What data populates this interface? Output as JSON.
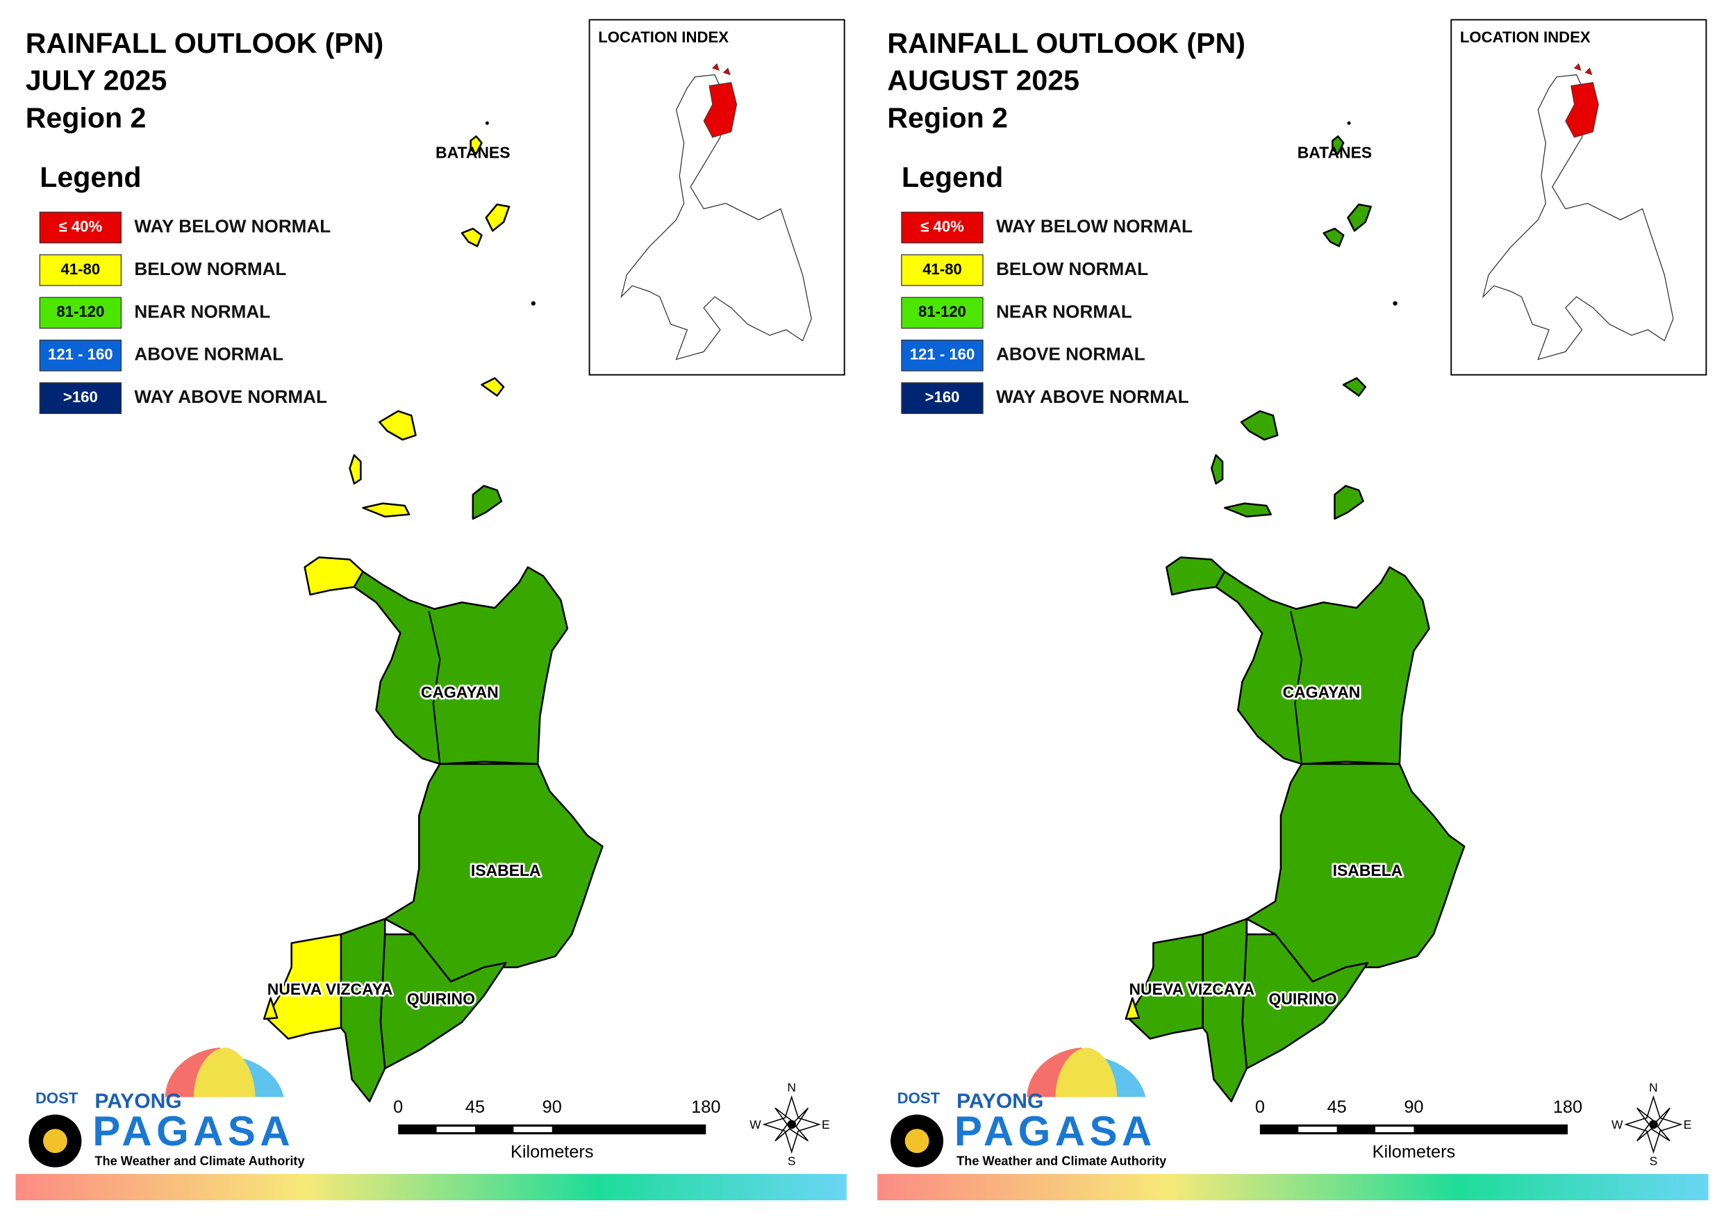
{
  "panels": [
    {
      "title": [
        "RAINFALL OUTLOOK (PN)",
        "JULY 2025",
        "Region 2"
      ],
      "legend": {
        "title": "Legend",
        "items": [
          {
            "code": "≤ 40%",
            "label": "WAY BELOW NORMAL",
            "color": "#e60000"
          },
          {
            "code": "41-80",
            "label": "BELOW NORMAL",
            "color": "#ffff00"
          },
          {
            "code": "81-120",
            "label": "NEAR NORMAL",
            "color": "#4ce600"
          },
          {
            "code": "121 - 160",
            "label": "ABOVE NORMAL",
            "color": "#0a64d8"
          },
          {
            "code": ">160",
            "label": "WAY ABOVE NORMAL",
            "color": "#002673"
          }
        ]
      },
      "location_index": "LOCATION INDEX",
      "labels": [
        "BATANES",
        "CAGAYAN",
        "ISABELA",
        "NUEVA VIZCAYA",
        "QUIRINO"
      ],
      "zones": [
        "#ffff00",
        "#38a800",
        "#38a800",
        "#38a800",
        "#38a800",
        "#ffff00",
        "#ffff00",
        "#ffff00",
        "#ffff00",
        "#ffff00",
        "#ffff00",
        "#ffff00",
        "#ffff00",
        "#ffff00",
        "#38a800"
      ],
      "scale": {
        "ticks": [
          0,
          45,
          90,
          180
        ],
        "unit": "Kilometers"
      },
      "compass": [
        "N",
        "E",
        "S",
        "W"
      ],
      "logo": {
        "dost": "DOST",
        "payong": "PAYONG",
        "pagasa": "PAGASA",
        "tagline": "The Weather and Climate Authority"
      }
    },
    {
      "title": [
        "RAINFALL OUTLOOK (PN)",
        "AUGUST 2025",
        "Region 2"
      ],
      "legend": {
        "title": "Legend",
        "items": [
          {
            "code": "≤ 40%",
            "label": "WAY BELOW NORMAL",
            "color": "#e60000"
          },
          {
            "code": "41-80",
            "label": "BELOW NORMAL",
            "color": "#ffff00"
          },
          {
            "code": "81-120",
            "label": "NEAR NORMAL",
            "color": "#4ce600"
          },
          {
            "code": "121 - 160",
            "label": "ABOVE NORMAL",
            "color": "#0a64d8"
          },
          {
            "code": ">160",
            "label": "WAY ABOVE NORMAL",
            "color": "#002673"
          }
        ]
      },
      "location_index": "LOCATION INDEX",
      "labels": [
        "BATANES",
        "CAGAYAN",
        "ISABELA",
        "NUEVA VIZCAYA",
        "QUIRINO"
      ],
      "zones": [
        "#38a800",
        "#38a800",
        "#38a800",
        "#38a800",
        "#38a800",
        "#38a800",
        "#ffff00",
        "#38a800",
        "#38a800",
        "#38a800",
        "#38a800",
        "#38a800",
        "#38a800",
        "#38a800",
        "#38a800"
      ],
      "scale": {
        "ticks": [
          0,
          45,
          90,
          180
        ],
        "unit": "Kilometers"
      },
      "compass": [
        "N",
        "E",
        "S",
        "W"
      ],
      "logo": {
        "dost": "DOST",
        "payong": "PAYONG",
        "pagasa": "PAGASA",
        "tagline": "The Weather and Climate Authority"
      }
    }
  ]
}
